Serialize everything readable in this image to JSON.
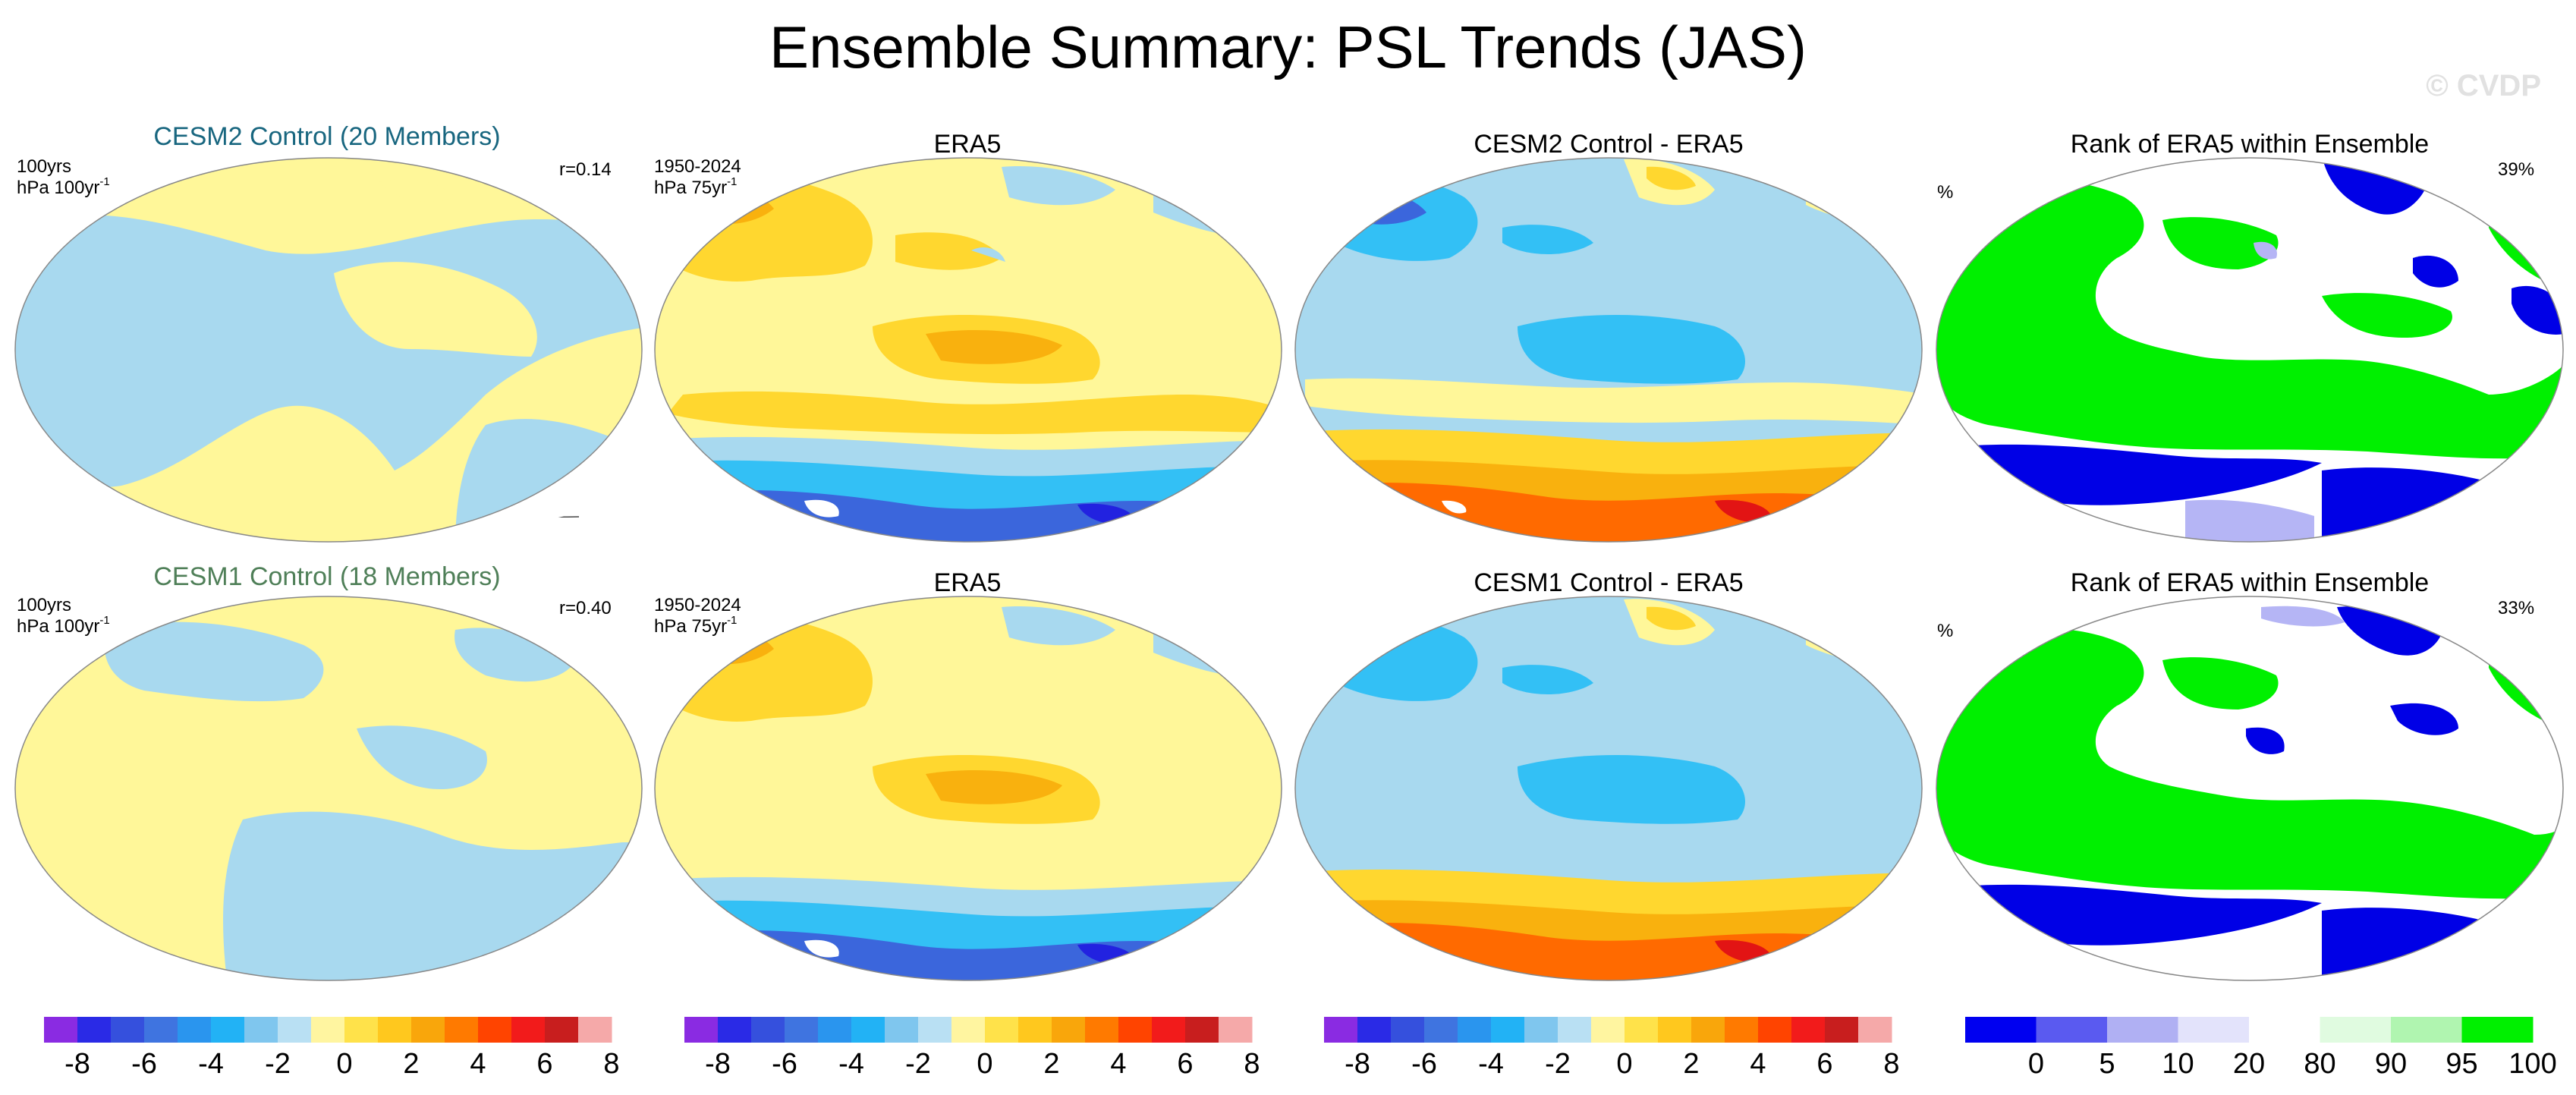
{
  "title": "Ensemble Summary: PSL Trends (JAS)",
  "watermark": "© CVDP",
  "colors": {
    "neg4": "#7a1ee6",
    "neg3": "#2222e0",
    "neg2": "#3b66dc",
    "neg1": "#33c0f5",
    "neg0": "#a8d9ef",
    "pos0": "#fff799",
    "pos1": "#ffd72f",
    "pos2": "#f9b10e",
    "pos3": "#ff6a00",
    "pos4": "#e21414",
    "rank_low": "#0000e6",
    "rank_lowmid": "#b5b5f5",
    "rank_mid": "#ffffff",
    "rank_high": "#00f000",
    "coast": "#444444"
  },
  "rows": [
    {
      "model_title": "CESM2 Control (20 Members)",
      "model_title_color": "#18667f",
      "model_corner_left_1": "100yrs",
      "model_corner_left_2": "hPa 100yr",
      "model_corner_left_sup": "-1",
      "model_corner_right": "r=0.14",
      "obs_title": "ERA5",
      "obs_corner_left_1": "1950-2024",
      "obs_corner_left_2": "hPa 75yr",
      "obs_corner_left_sup": "-1",
      "diff_title": "CESM2 Control - ERA5",
      "rank_title": "Rank of ERA5 within Ensemble",
      "rank_corner_left": "%",
      "rank_corner_right": "39%"
    },
    {
      "model_title": "CESM1 Control (18 Members)",
      "model_title_color": "#4f7f58",
      "model_corner_left_1": "100yrs",
      "model_corner_left_2": "hPa 100yr",
      "model_corner_left_sup": "-1",
      "model_corner_right": "r=0.40",
      "obs_title": "ERA5",
      "obs_corner_left_1": "1950-2024",
      "obs_corner_left_2": "hPa 75yr",
      "obs_corner_left_sup": "-1",
      "diff_title": "CESM1 Control - ERA5",
      "rank_title": "Rank of ERA5 within Ensemble",
      "rank_corner_left": "%",
      "rank_corner_right": "33%"
    }
  ],
  "colorbars": {
    "trend": {
      "colors": [
        "#8a2be2",
        "#2a2ae6",
        "#3550dd",
        "#3f74e0",
        "#2a95ee",
        "#22b2f5",
        "#7fc6ee",
        "#b9e0f3",
        "#fff5a0",
        "#ffe24a",
        "#ffc81e",
        "#f9a60b",
        "#ff7a00",
        "#ff4400",
        "#f21b1b",
        "#c81e1e",
        "#f5a9a9"
      ],
      "labels": [
        "-8",
        "-6",
        "-4",
        "-2",
        "0",
        "2",
        "4",
        "6",
        "8"
      ]
    },
    "rank": {
      "colors": [
        "#0000f0",
        "#5a5af0",
        "#b0b0f3",
        "#e3e3fb",
        "#ffffff",
        "#e0fbe0",
        "#b0f5b0",
        "#00f000"
      ],
      "labels": [
        "0",
        "5",
        "10",
        "20",
        "80",
        "90",
        "95",
        "100"
      ]
    }
  }
}
